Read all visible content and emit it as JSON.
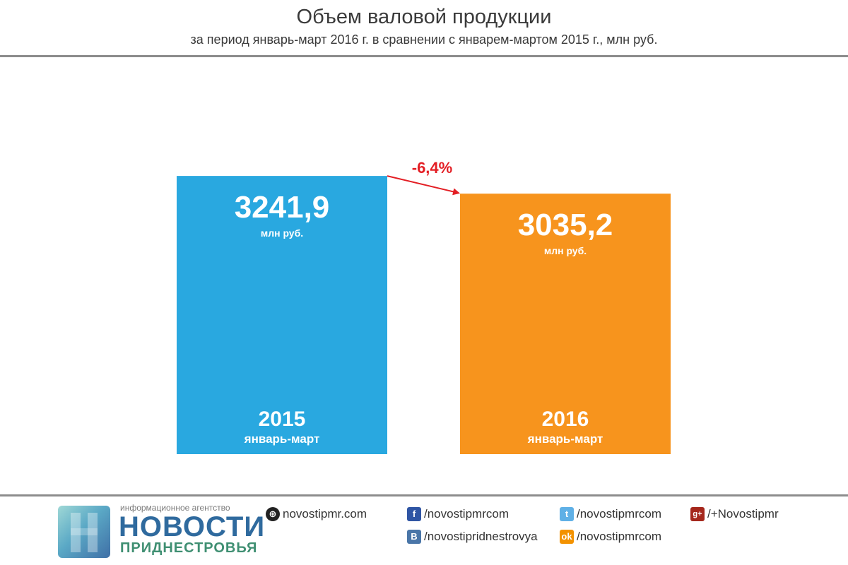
{
  "header": {
    "title": "Объем валовой продукции",
    "subtitle": "за период январь-март 2016 г. в сравнении с январем-мартом 2015 г., млн руб."
  },
  "chart_data": {
    "type": "bar",
    "title": "Объем валовой продукции",
    "subtitle": "за период январь-март 2016 г. в сравнении с январем-мартом 2015 г., млн руб.",
    "categories": [
      "2015",
      "2016"
    ],
    "values": [
      3241.9,
      3035.2
    ],
    "value_labels": [
      "3241,9",
      "3035,2"
    ],
    "unit_label": "млн руб.",
    "period_label": "январь-март",
    "colors": [
      "#29a8e0",
      "#f7941d"
    ],
    "change_label": "-6,4%",
    "change_color": "#e31e24"
  },
  "footer": {
    "agency": "информационное агентство",
    "brand": "НОВОСТИ",
    "brand_sub": "ПРИДНЕСТРОВЬЯ",
    "links": {
      "site": "novostipmr.com",
      "facebook": "/novostipmrcom",
      "vk": "/novostipridnestrovya",
      "twitter": "/novostipmrcom",
      "odnoklassniki": "/novostipmrcom",
      "googleplus": "/+Novostipmr"
    },
    "icons": {
      "site": "globe-icon",
      "facebook": "facebook-icon",
      "vk": "vk-icon",
      "twitter": "twitter-icon",
      "odnoklassniki": "odnoklassniki-icon",
      "googleplus": "google-plus-icon"
    }
  }
}
